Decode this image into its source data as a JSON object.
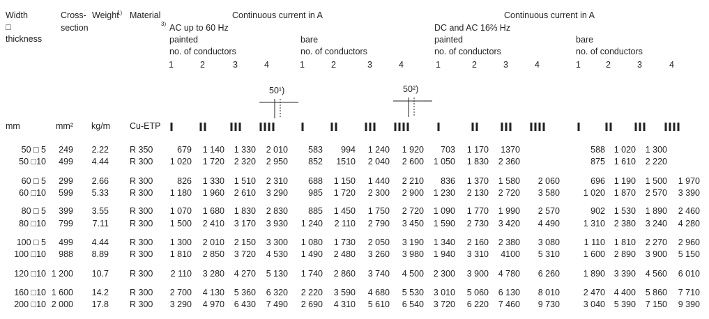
{
  "header": {
    "width": [
      "Width",
      "□",
      "thickness"
    ],
    "cross_section": [
      "Cross-",
      "section"
    ],
    "weight": "Weight",
    "weight_note": "1)",
    "material": "Material",
    "material_note": "3)",
    "groups": [
      {
        "title": "Continuous current in A",
        "subgroups": [
          {
            "lines": [
              "AC up to 60 Hz",
              "painted",
              "no. of conductors"
            ],
            "conductors": [
              1,
              2,
              3,
              4
            ]
          },
          {
            "lines": [
              "bare",
              "no. of conductors"
            ],
            "conductors": [
              1,
              2,
              3,
              4
            ]
          }
        ]
      },
      {
        "title": "Continuous current in A",
        "subgroups": [
          {
            "lines": [
              "DC and AC 16⅔ Hz",
              "painted",
              "no. of conductors"
            ],
            "conductors": [
              1,
              2,
              3,
              4
            ]
          },
          {
            "lines": [
              "bare",
              "no. of conductors"
            ],
            "conductors": [
              1,
              2,
              3,
              4
            ]
          }
        ]
      }
    ],
    "figure_labels": [
      "50¹)",
      "50²)"
    ]
  },
  "units": [
    "mm",
    "mm²",
    "kg/m",
    "Cu-ETP"
  ],
  "table": {
    "rows": [
      [
        "50 □ 5",
        "249",
        "2.22",
        "R 350",
        "679",
        "1 140",
        "1 330",
        "2 010",
        "583",
        "994",
        "1 240",
        "1 920",
        "703",
        "1 170",
        "1370",
        null,
        "588",
        "1 020",
        "1 300",
        null
      ],
      [
        "50 □10",
        "499",
        "4.44",
        "R 300",
        "1 020",
        "1 720",
        "2 320",
        "2 950",
        "852",
        "1510",
        "2 040",
        "2 600",
        "1 050",
        "1 830",
        "2 360",
        null,
        "875",
        "1 610",
        "2 220",
        null
      ],
      [
        "60 □ 5",
        "299",
        "2.66",
        "R 300",
        "826",
        "1 330",
        "1 510",
        "2 310",
        "688",
        "1 150",
        "1 440",
        "2 210",
        "836",
        "1 370",
        "1 580",
        "2 060",
        "696",
        "1 190",
        "1 500",
        "1 970"
      ],
      [
        "60 □10",
        "599",
        "5.33",
        "R 300",
        "1 180",
        "1 960",
        "2 610",
        "3 290",
        "985",
        "1 720",
        "2 300",
        "2 900",
        "1 230",
        "2 130",
        "2 720",
        "3 580",
        "1 020",
        "1 870",
        "2 570",
        "3 390"
      ],
      [
        "80 □ 5",
        "399",
        "3.55",
        "R 300",
        "1 070",
        "1 680",
        "1 830",
        "2 830",
        "885",
        "1 450",
        "1 750",
        "2 720",
        "1 090",
        "1 770",
        "1 990",
        "2 570",
        "902",
        "1 530",
        "1 890",
        "2 460"
      ],
      [
        "80 □10",
        "799",
        "7.11",
        "R 300",
        "1 500",
        "2 410",
        "3 170",
        "3 930",
        "1 240",
        "2 110",
        "2 790",
        "3 450",
        "1 590",
        "2 730",
        "3 420",
        "4 490",
        "1 310",
        "2 380",
        "3 240",
        "4 280"
      ],
      [
        "100 □ 5",
        "499",
        "4.44",
        "R 300",
        "1 300",
        "2 010",
        "2 150",
        "3 300",
        "1 080",
        "1 730",
        "2 050",
        "3 190",
        "1 340",
        "2 160",
        "2 380",
        "3 080",
        "1 110",
        "1 810",
        "2 270",
        "2 960"
      ],
      [
        "100 □10",
        "988",
        "8.89",
        "R 300",
        "1 810",
        "2 850",
        "3 720",
        "4 530",
        "1 490",
        "2 480",
        "3 260",
        "3 980",
        "1 940",
        "3 310",
        "4100",
        "5 310",
        "1 600",
        "2 890",
        "3 900",
        "5 150"
      ],
      [
        "120 □10",
        "1 200",
        "10.7",
        "R 300",
        "2 110",
        "3 280",
        "4 270",
        "5 130",
        "1 740",
        "2 860",
        "3 740",
        "4 500",
        "2 300",
        "3 900",
        "4 780",
        "6 260",
        "1 890",
        "3 390",
        "4 560",
        "6 010"
      ],
      [
        "160 □10",
        "1 600",
        "14.2",
        "R 300",
        "2 700",
        "4 130",
        "5 360",
        "6 320",
        "2 220",
        "3 590",
        "4 680",
        "5 530",
        "3 010",
        "5 060",
        "6 130",
        "8 010",
        "2 470",
        "4 400",
        "5 860",
        "7 710"
      ],
      [
        "200 □10",
        "2 000",
        "17.8",
        "R 300",
        "3 290",
        "4 970",
        "6 430",
        "7 490",
        "2 690",
        "4 310",
        "5 610",
        "6 540",
        "3 720",
        "6 220",
        "7 460",
        "9 730",
        "3 040",
        "5 390",
        "7 150",
        "9 390"
      ]
    ]
  }
}
